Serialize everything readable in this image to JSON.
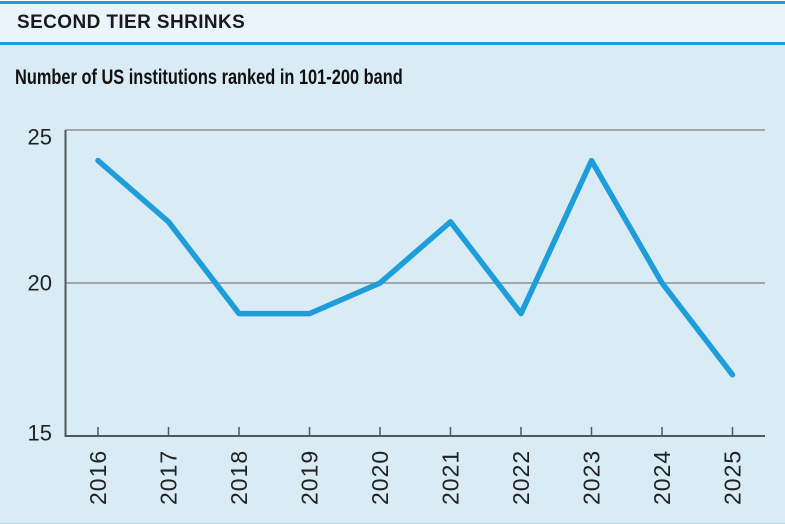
{
  "header": {
    "title": "SECOND TIER SHRINKS",
    "subtitle": "Number of US institutions ranked in 101-200 band"
  },
  "colors": {
    "accent_blue": "#1e9cd6",
    "line_blue": "#1d9dd9",
    "background": "#d9ecf6",
    "header_band": "#eaf4fb",
    "grid_gray": "#8d9092",
    "axis_dark": "#54575a",
    "text": "#1a1a1a"
  },
  "chart_data": {
    "type": "line",
    "title": "SECOND TIER SHRINKS",
    "subtitle": "Number of US institutions ranked in 101-200 band",
    "categories": [
      "2016",
      "2017",
      "2018",
      "2019",
      "2020",
      "2021",
      "2022",
      "2023",
      "2024",
      "2025"
    ],
    "values": [
      24,
      22,
      19,
      19,
      20,
      22,
      19,
      24,
      20,
      17
    ],
    "xlabel": "",
    "ylabel": "",
    "ylim": [
      15,
      25
    ],
    "yticks": [
      25,
      20,
      15
    ],
    "grid": "horizontal-only",
    "legend": "none",
    "line_color": "#1d9dd9"
  }
}
